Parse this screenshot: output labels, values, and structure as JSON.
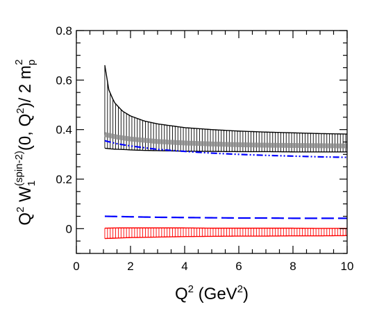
{
  "chart_data": {
    "type": "line",
    "xlim": [
      0,
      10
    ],
    "ylim": [
      -0.1,
      0.8
    ],
    "xticks": [
      0,
      2,
      4,
      6,
      8,
      10
    ],
    "yticks": [
      0,
      0.2,
      0.4,
      0.6,
      0.8
    ],
    "xtick_labels": [
      "0",
      "2",
      "4",
      "6",
      "8",
      "10"
    ],
    "ytick_labels": [
      "0",
      "0.2",
      "0.4",
      "0.6",
      "0.8"
    ],
    "xlabel": {
      "main": "Q",
      "sup": "2",
      "rest": " (GeV",
      "sup2": "2",
      "close": ")"
    },
    "ylabel": {
      "p1": "Q",
      "p1sup": "2",
      "p2": " W",
      "p2sub": "1",
      "p2sup": "(spin-2)",
      "p3": "(0, Q",
      "p3sup": "2",
      "p4": ")/ 2 m",
      "p4sub": "p",
      "p4sup": "2"
    },
    "grid": false,
    "legend": "none",
    "bands": [
      {
        "color": "#000000",
        "style": "vertical-hatch",
        "x": [
          1.05,
          1.2,
          1.4,
          1.7,
          2.0,
          2.5,
          3.0,
          4.0,
          5.0,
          6.0,
          7.0,
          8.0,
          9.0,
          10.0
        ],
        "upper": [
          0.66,
          0.56,
          0.51,
          0.475,
          0.455,
          0.435,
          0.423,
          0.408,
          0.4,
          0.394,
          0.39,
          0.387,
          0.384,
          0.382
        ],
        "lower": [
          0.325,
          0.323,
          0.321,
          0.32,
          0.318,
          0.316,
          0.315,
          0.313,
          0.312,
          0.311,
          0.311,
          0.31,
          0.31,
          0.31
        ]
      },
      {
        "color": "#ff0000",
        "style": "vertical-hatch",
        "x": [
          1.05,
          1.5,
          2.0,
          3.0,
          4.0,
          5.0,
          6.0,
          7.0,
          8.0,
          9.0,
          10.0
        ],
        "upper": [
          0.002,
          0.003,
          0.003,
          0.003,
          0.003,
          0.002,
          0.002,
          0.002,
          0.002,
          0.001,
          0.001
        ],
        "lower": [
          -0.04,
          -0.038,
          -0.036,
          -0.034,
          -0.032,
          -0.031,
          -0.03,
          -0.03,
          -0.029,
          -0.029,
          -0.028
        ]
      }
    ],
    "series": [
      {
        "style": "gray-band",
        "color": "#888888",
        "x": [
          1.05,
          1.5,
          2.0,
          3.0,
          4.0,
          5.0,
          6.0,
          7.0,
          8.0,
          9.0,
          10.0
        ],
        "y": [
          0.38,
          0.37,
          0.362,
          0.352,
          0.346,
          0.342,
          0.339,
          0.337,
          0.336,
          0.335,
          0.334
        ]
      },
      {
        "style": "dash-dot",
        "color": "#0000ff",
        "x": [
          1.05,
          1.5,
          2.0,
          3.0,
          4.0,
          5.0,
          6.0,
          7.0,
          8.0,
          9.0,
          10.0
        ],
        "y": [
          0.355,
          0.343,
          0.334,
          0.32,
          0.312,
          0.305,
          0.3,
          0.296,
          0.293,
          0.29,
          0.288
        ]
      },
      {
        "style": "long-dash",
        "color": "#0000ff",
        "x": [
          1.05,
          2.0,
          3.0,
          4.0,
          5.0,
          6.0,
          7.0,
          8.0,
          9.0,
          10.0
        ],
        "y": [
          0.05,
          0.048,
          0.046,
          0.045,
          0.044,
          0.043,
          0.043,
          0.042,
          0.042,
          0.042
        ]
      }
    ]
  }
}
